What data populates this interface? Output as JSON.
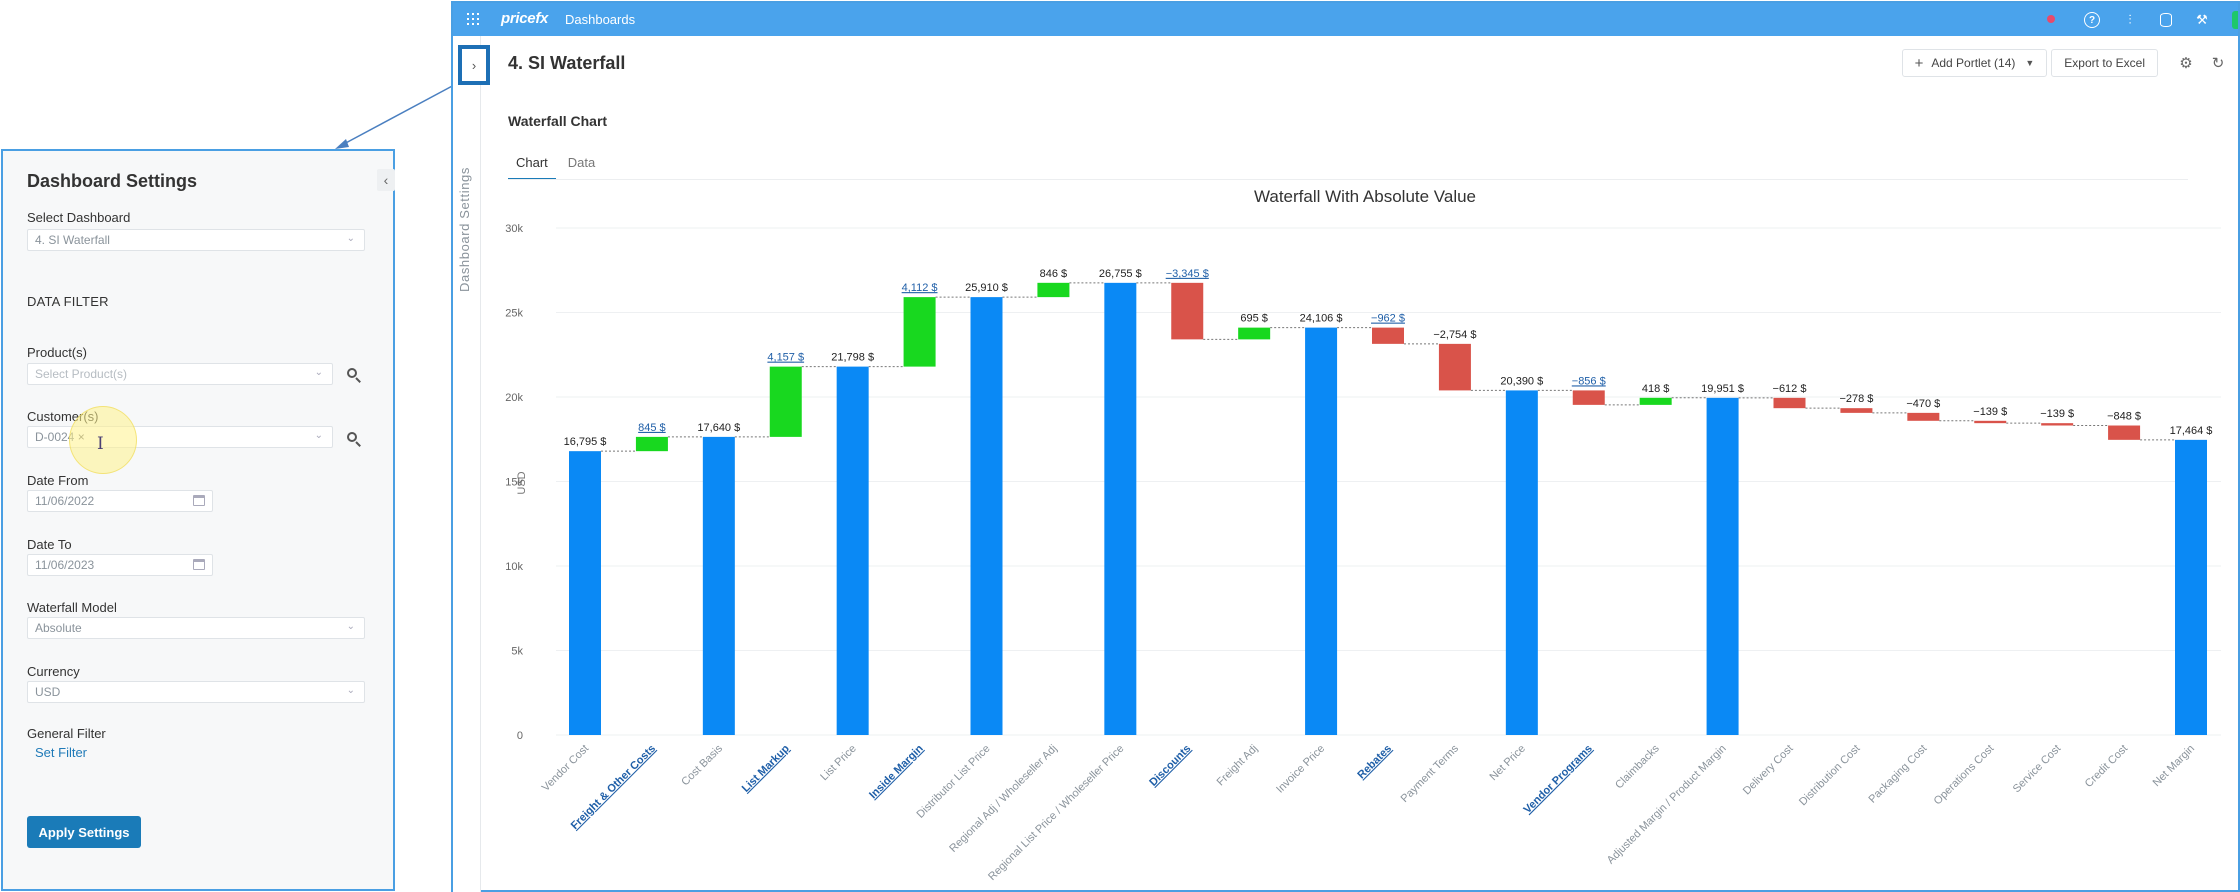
{
  "settings": {
    "title": "Dashboard Settings",
    "collapse_icon": "chevron-left-icon",
    "select_dashboard_label": "Select Dashboard",
    "select_dashboard_value": "4. SI Waterfall",
    "data_filter_heading": "DATA FILTER",
    "products_label": "Product(s)",
    "products_placeholder": "Select Product(s)",
    "customers_label": "Customer(s)",
    "customer_chip": "D-0024",
    "customer_chip_remove": "×",
    "date_from_label": "Date From",
    "date_from_value": "11/06/2022",
    "date_to_label": "Date To",
    "date_to_value": "11/06/2023",
    "waterfall_model_label": "Waterfall Model",
    "waterfall_model_value": "Absolute",
    "currency_label": "Currency",
    "currency_value": "USD",
    "general_filter_label": "General Filter",
    "set_filter_link": "Set Filter",
    "apply_button": "Apply Settings"
  },
  "topbar": {
    "brand": "pricefx",
    "nav_item": "Dashboards",
    "icons": [
      "notification-icon",
      "help-icon",
      "sliders-icon",
      "database-icon",
      "tools-icon"
    ],
    "accent": "#4aa3ec"
  },
  "rail": {
    "toggle_icon": "chevron-right-icon",
    "label": "Dashboard Settings"
  },
  "page": {
    "title": "4. SI Waterfall",
    "add_portlet": "Add Portlet (14)",
    "export": "Export to Excel",
    "portlet_title": "Waterfall Chart",
    "tabs": [
      {
        "label": "Chart",
        "active": true
      },
      {
        "label": "Data",
        "active": false
      }
    ]
  },
  "chart_data": {
    "type": "waterfall",
    "title": "Waterfall With Absolute Value",
    "ylabel": "USD",
    "ylim": [
      0,
      30000
    ],
    "yticks": [
      0,
      5000,
      10000,
      15000,
      20000,
      25000,
      30000
    ],
    "ytick_labels": [
      "0",
      "5k",
      "10k",
      "15k",
      "20k",
      "25k",
      "30k"
    ],
    "colors": {
      "total": "#0a89f5",
      "increase": "#18d81f",
      "decrease": "#d9534a"
    },
    "points": [
      {
        "label": "Vendor Cost",
        "kind": "total",
        "value": 16795,
        "display": "16,795 $",
        "link": false
      },
      {
        "label": "Freight & Other Costs",
        "kind": "delta",
        "value": 845,
        "display": "845 $",
        "link": true
      },
      {
        "label": "Cost Basis",
        "kind": "total",
        "value": 17640,
        "display": "17,640 $",
        "link": false
      },
      {
        "label": "List Markup",
        "kind": "delta",
        "value": 4157,
        "display": "4,157 $",
        "link": true
      },
      {
        "label": "List Price",
        "kind": "total",
        "value": 21798,
        "display": "21,798 $",
        "link": false
      },
      {
        "label": "Inside Margin",
        "kind": "delta",
        "value": 4112,
        "display": "4,112 $",
        "link": true
      },
      {
        "label": "Distributor List Price",
        "kind": "total",
        "value": 25910,
        "display": "25,910 $",
        "link": false
      },
      {
        "label": "Regional Adj / Wholeseller Adj",
        "kind": "delta",
        "value": 846,
        "display": "846 $",
        "link": false
      },
      {
        "label": "Regional List Price / Wholeseller Price",
        "kind": "total",
        "value": 26755,
        "display": "26,755 $",
        "link": false
      },
      {
        "label": "Discounts",
        "kind": "delta",
        "value": -3345,
        "display": "−3,345 $",
        "link": true
      },
      {
        "label": "Freight Adj",
        "kind": "delta",
        "value": 695,
        "display": "695 $",
        "link": false
      },
      {
        "label": "Invoice Price",
        "kind": "total",
        "value": 24106,
        "display": "24,106 $",
        "link": false
      },
      {
        "label": "Rebates",
        "kind": "delta",
        "value": -962,
        "display": "−962 $",
        "link": true
      },
      {
        "label": "Payment Terms",
        "kind": "delta",
        "value": -2754,
        "display": "−2,754 $",
        "link": false
      },
      {
        "label": "Net Price",
        "kind": "total",
        "value": 20390,
        "display": "20,390 $",
        "link": false
      },
      {
        "label": "Vendor Programs",
        "kind": "delta",
        "value": -856,
        "display": "−856 $",
        "link": true
      },
      {
        "label": "Claimbacks",
        "kind": "delta",
        "value": 418,
        "display": "418 $",
        "link": false
      },
      {
        "label": "Adjusted Margin / Product Margin",
        "kind": "total",
        "value": 19951,
        "display": "19,951 $",
        "link": false
      },
      {
        "label": "Delivery Cost",
        "kind": "delta",
        "value": -612,
        "display": "−612 $",
        "link": false
      },
      {
        "label": "Distribution Cost",
        "kind": "delta",
        "value": -278,
        "display": "−278 $",
        "link": false
      },
      {
        "label": "Packaging Cost",
        "kind": "delta",
        "value": -470,
        "display": "−470 $",
        "link": false
      },
      {
        "label": "Operations Cost",
        "kind": "delta",
        "value": -139,
        "display": "−139 $",
        "link": false
      },
      {
        "label": "Service Cost",
        "kind": "delta",
        "value": -139,
        "display": "−139 $",
        "link": false
      },
      {
        "label": "Credit Cost",
        "kind": "delta",
        "value": -848,
        "display": "−848 $",
        "link": false
      },
      {
        "label": "Net Margin",
        "kind": "total",
        "value": 17464,
        "display": "17,464 $",
        "link": false
      }
    ]
  }
}
